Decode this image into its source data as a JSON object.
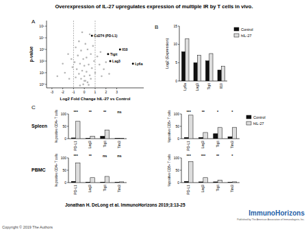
{
  "figure": {
    "title": "Overexpression of IL-27 upregulates expression of multiple IR by T cells in vivo.",
    "citation": "Jonathan H. DeLong et al. ImmunoHorizons 2019;3:13-25",
    "copyright": "Copyright © 2019 The Authors",
    "publisher_logo": "ImmunoHorizons",
    "publisher": "Published by The American Association of Immunologists, Inc."
  },
  "chart_data": [
    {
      "type": "scatter",
      "panel": "A",
      "x_label": "Log2 Fold Change hIL-27 vs Control",
      "y_label": "p-value",
      "log": "y",
      "xlim": [
        -3.5,
        5.5
      ],
      "ylim": [
        0.5,
        300000
      ],
      "xticks": [
        -3,
        -2,
        -1,
        0,
        1,
        2,
        3
      ],
      "yticks": [
        {
          "value": 1,
          "label": "10⁰"
        },
        {
          "value": 10,
          "label": "10¹"
        },
        {
          "value": 100,
          "label": "10²"
        },
        {
          "value": 1000,
          "label": "10³"
        },
        {
          "value": 10000,
          "label": "10⁴"
        },
        {
          "value": 100000,
          "label": "10⁵"
        }
      ],
      "reference_lines": [
        -1,
        1
      ],
      "series": [
        {
          "color": "#b5b5b5",
          "x": [
            -0.1,
            0.1,
            -0.3,
            0.3,
            0,
            -0.5,
            0.5,
            -0.2,
            0.2,
            -0.7,
            0.7,
            0,
            -0.4,
            0.4,
            -0.9,
            0.9,
            -0.1,
            0.2,
            -0.6,
            0.6,
            -1.2,
            1.2,
            -0.3,
            0.3,
            -0.8,
            0.8,
            0.1,
            -0.5,
            1.5,
            -1.5,
            -2,
            2,
            -1.8,
            1.8,
            -2.5,
            2.3,
            0.5,
            -0.2,
            0,
            0.6,
            -0.8,
            1,
            -1.1,
            1.4,
            -0.4,
            0.4,
            1.6,
            -1.4
          ],
          "values": [
            1,
            2,
            3,
            1.5,
            5,
            8,
            6,
            15,
            12,
            20,
            25,
            40,
            60,
            50,
            80,
            100,
            150,
            200,
            300,
            400,
            150,
            250,
            800,
            1000,
            1500,
            2000,
            3000,
            5000,
            600,
            400,
            60,
            80,
            10,
            20,
            5,
            8,
            20000,
            30000,
            2,
            3,
            4,
            10,
            30,
            50,
            0.8,
            0.9,
            5,
            3
          ]
        },
        {
          "color": "#000000",
          "x": [
            0.7,
            2.2,
            3.3,
            2.4,
            4.5
          ],
          "values": [
            15000,
            400,
            1000,
            100,
            60
          ],
          "point_labels": [
            "Cd274 (PD-L1)",
            "Tigit",
            "Il10",
            "Lag3",
            "Ly6a"
          ]
        }
      ]
    },
    {
      "type": "bar",
      "panel": "B",
      "y_label": "Log2 (Expression)",
      "categories": [
        "Ly6a",
        "Lag3",
        "Tigit",
        "Il10"
      ],
      "ylim": [
        0,
        15
      ],
      "yticks": [
        0,
        5,
        10,
        15
      ],
      "legend": "upper right",
      "series": [
        {
          "name": "Control",
          "color": "#111111",
          "values": [
            8,
            5,
            5.5,
            3
          ]
        },
        {
          "name": "hIL-27",
          "color": "#dddddd",
          "values": [
            11.5,
            7,
            7.5,
            4
          ]
        }
      ]
    },
    {
      "type": "bar",
      "panel": "C",
      "row_label": "Spleen",
      "y_label": "% positive CD4+ T cells",
      "categories": [
        "PD-L1",
        "Lag3",
        "Tigit",
        "Tim3"
      ],
      "ylim": [
        0,
        100
      ],
      "yticks": [
        0,
        50,
        100
      ],
      "annotations": [
        "***",
        "**",
        "**",
        "ns"
      ],
      "series": [
        {
          "name": "Control",
          "color": "#111111",
          "values": [
            3,
            2,
            10,
            1
          ]
        },
        {
          "name": "hIL-27",
          "color": "#dddddd",
          "values": [
            70,
            10,
            35,
            2
          ]
        }
      ]
    },
    {
      "type": "bar",
      "y_label": "%positive CD8+ T cells",
      "categories": [
        "PD-L1",
        "Lag3",
        "Tigit",
        "Tim3"
      ],
      "ylim": [
        0,
        100
      ],
      "yticks": [
        0,
        50,
        100
      ],
      "annotations": [
        "***",
        "**",
        "*",
        "*"
      ],
      "legend": "upper right",
      "series": [
        {
          "name": "Control",
          "color": "#111111",
          "values": [
            5,
            5,
            20,
            8
          ]
        },
        {
          "name": "hIL-27",
          "color": "#dddddd",
          "values": [
            95,
            25,
            45,
            45
          ]
        }
      ]
    },
    {
      "type": "bar",
      "row_label": "PBMC",
      "y_label": "% positive CD4+ T cells",
      "categories": [
        "PD-L1",
        "Lag3",
        "Tigit",
        "Tim3"
      ],
      "ylim": [
        0,
        100
      ],
      "yticks": [
        0,
        50,
        100
      ],
      "annotations": [
        "***",
        "**",
        "ns",
        "ns"
      ],
      "series": [
        {
          "name": "Control",
          "color": "#111111",
          "values": [
            5,
            2,
            2,
            1
          ]
        },
        {
          "name": "hIL-27",
          "color": "#dddddd",
          "values": [
            80,
            20,
            25,
            3
          ]
        }
      ]
    },
    {
      "type": "bar",
      "y_label": "%positive CD8+ T cells",
      "categories": [
        "PD-L1",
        "Lag3",
        "Tigit",
        "Tim3"
      ],
      "ylim": [
        0,
        100
      ],
      "yticks": [
        0,
        50,
        100
      ],
      "annotations": [
        "***",
        "***",
        "**",
        "*"
      ],
      "series": [
        {
          "name": "Control",
          "color": "#111111",
          "values": [
            5,
            3,
            3,
            1
          ]
        },
        {
          "name": "hIL-27",
          "color": "#dddddd",
          "values": [
            85,
            20,
            10,
            3
          ]
        }
      ]
    }
  ]
}
